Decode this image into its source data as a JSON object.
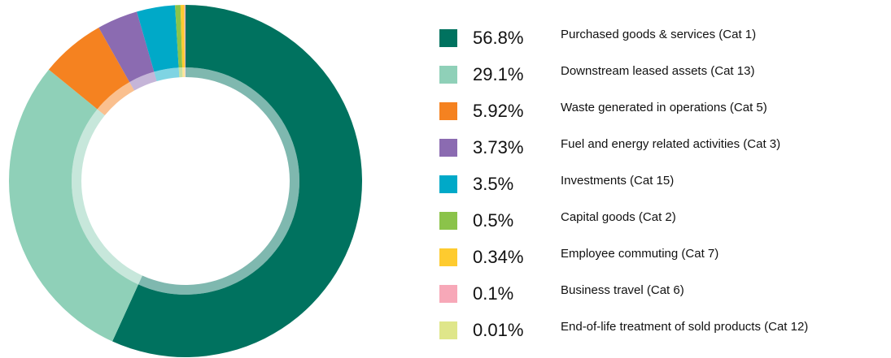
{
  "chart_data": {
    "type": "donut",
    "categories": [
      "Purchased goods & services (Cat 1)",
      "Downstream leased assets (Cat 13)",
      "Waste generated in operations (Cat 5)",
      "Fuel and energy related activities (Cat 3)",
      "Investments (Cat 15)",
      "Capital goods (Cat 2)",
      "Employee commuting (Cat 7)",
      "Business travel (Cat 6)",
      "End-of-life treatment of sold products (Cat 12)"
    ],
    "values": [
      56.8,
      29.1,
      5.92,
      3.73,
      3.5,
      0.5,
      0.34,
      0.1,
      0.01
    ],
    "value_labels": [
      "56.8%",
      "29.1%",
      "5.92%",
      "3.73%",
      "3.5%",
      "0.5%",
      "0.34%",
      "0.1%",
      "0.01%"
    ],
    "colors": [
      "#00725f",
      "#8fd0b8",
      "#f58220",
      "#8b6bb1",
      "#00a9c8",
      "#8bc34a",
      "#fecb2f",
      "#f7a8b8",
      "#dfe68a"
    ]
  }
}
